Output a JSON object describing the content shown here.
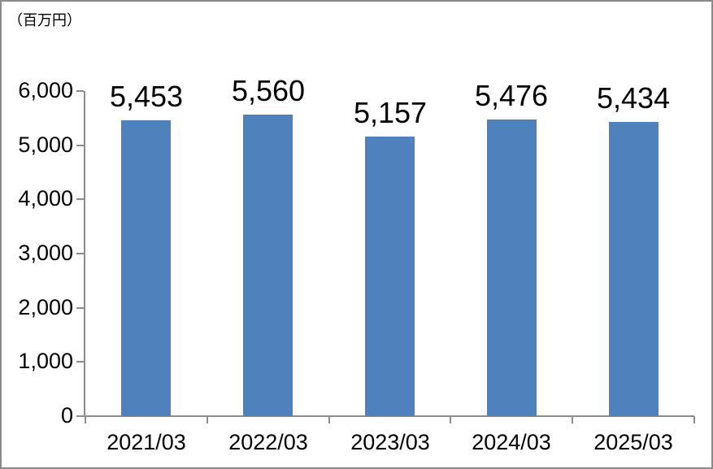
{
  "chart_data": {
    "type": "bar",
    "title": "",
    "unit_label": "（百万円）",
    "xlabel": "",
    "ylabel": "百万円",
    "categories": [
      "2021/03",
      "2022/03",
      "2023/03",
      "2024/03",
      "2025/03"
    ],
    "values": [
      5453,
      5560,
      5157,
      5476,
      5434
    ],
    "value_labels": [
      "5,453",
      "5,560",
      "5,157",
      "5,476",
      "5,434"
    ],
    "ylim": [
      0,
      6000
    ],
    "ytick_interval": 1000,
    "ytick_values": [
      0,
      1000,
      2000,
      3000,
      4000,
      5000,
      6000
    ],
    "ytick_labels": [
      "0",
      "1,000",
      "2,000",
      "3,000",
      "4,000",
      "5,000",
      "6,000"
    ],
    "grid": false,
    "legend": "none",
    "bar_color": "#4f81bd",
    "axis_color": "#8c8c8c",
    "text_color": "#000000",
    "frame_border_color": "#8a8a8a"
  }
}
